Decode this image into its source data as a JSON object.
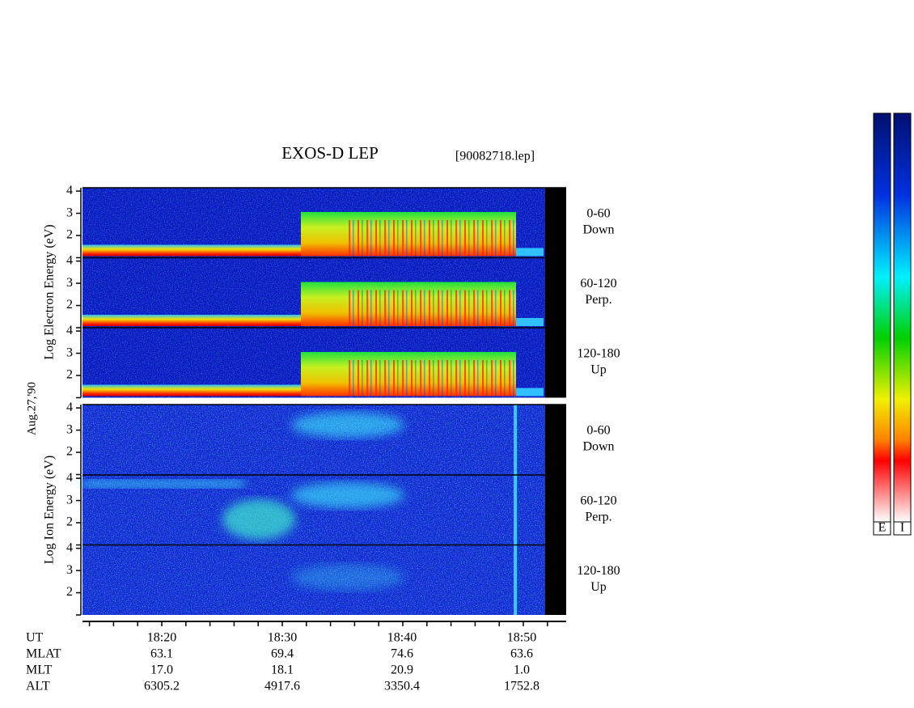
{
  "title": "EXOS-D LEP",
  "file_name": "[90082718.lep]",
  "date": "Aug.27,'90",
  "groups": [
    {
      "axis_label": "Log Electron Energy (eV)",
      "panels": [
        {
          "pitch_angle": "0-60",
          "direction": "Down"
        },
        {
          "pitch_angle": "60-120",
          "direction": "Perp."
        },
        {
          "pitch_angle": "120-180",
          "direction": "Up"
        }
      ]
    },
    {
      "axis_label": "Log Ion Energy (eV)",
      "panels": [
        {
          "pitch_angle": "0-60",
          "direction": "Down"
        },
        {
          "pitch_angle": "60-120",
          "direction": "Perp."
        },
        {
          "pitch_angle": "120-180",
          "direction": "Up"
        }
      ]
    }
  ],
  "energy_axis": {
    "ylim": [
      1,
      4.15
    ],
    "yticks": [
      2,
      3,
      4
    ]
  },
  "orbit_table": {
    "rows": [
      {
        "label": "UT",
        "values": [
          "18:20",
          "18:30",
          "18:40",
          "18:50"
        ]
      },
      {
        "label": "MLAT",
        "values": [
          "63.1",
          "69.4",
          "74.6",
          "63.6"
        ]
      },
      {
        "label": "MLT",
        "values": [
          "17.0",
          "18.1",
          "20.9",
          "1.0"
        ]
      },
      {
        "label": "ALT",
        "values": [
          "6305.2",
          "4917.6",
          "3350.4",
          "1752.8"
        ]
      }
    ]
  },
  "colorbars": [
    "E",
    "I"
  ]
}
